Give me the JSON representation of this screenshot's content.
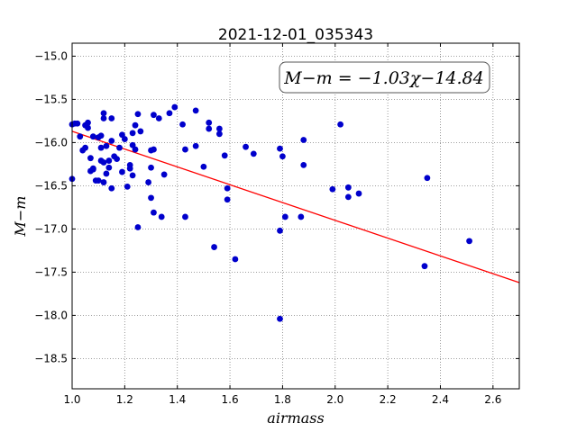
{
  "chart_data": {
    "type": "scatter",
    "title": "2021-12-01_035343",
    "xlabel": "airmass",
    "ylabel": "M−m",
    "xlim": [
      1.0,
      2.7
    ],
    "ylim": [
      -14.85,
      -18.85
    ],
    "y_inverted": true,
    "grid": true,
    "xticks": [
      1.0,
      1.2,
      1.4,
      1.6,
      1.8,
      2.0,
      2.2,
      2.4,
      2.6
    ],
    "xtick_labels": [
      "1.0",
      "1.2",
      "1.4",
      "1.6",
      "1.8",
      "2.0",
      "2.2",
      "2.4",
      "2.6"
    ],
    "yticks": [
      -15.0,
      -15.5,
      -16.0,
      -16.5,
      -17.0,
      -17.5,
      -18.0,
      -18.5
    ],
    "ytick_labels": [
      "−15.0",
      "−15.5",
      "−16.0",
      "−16.5",
      "−17.0",
      "−17.5",
      "−18.0",
      "−18.5"
    ],
    "annotation": "M−m = −1.03χ−14.84",
    "annotation_placement": "top-right",
    "colors": {
      "points": "#0000cc",
      "fit": "#ff0000",
      "grid": "#808080"
    },
    "fit": {
      "slope": -1.03,
      "intercept": -14.84
    },
    "points": [
      [
        1.0,
        -16.42
      ],
      [
        1.0,
        -15.79
      ],
      [
        1.01,
        -15.78
      ],
      [
        1.02,
        -15.78
      ],
      [
        1.03,
        -15.93
      ],
      [
        1.04,
        -16.09
      ],
      [
        1.05,
        -16.06
      ],
      [
        1.05,
        -15.8
      ],
      [
        1.06,
        -15.83
      ],
      [
        1.06,
        -15.77
      ],
      [
        1.07,
        -16.33
      ],
      [
        1.07,
        -16.18
      ],
      [
        1.08,
        -15.93
      ],
      [
        1.08,
        -16.31
      ],
      [
        1.08,
        -16.3
      ],
      [
        1.09,
        -16.44
      ],
      [
        1.1,
        -16.44
      ],
      [
        1.1,
        -15.94
      ],
      [
        1.11,
        -16.06
      ],
      [
        1.11,
        -15.92
      ],
      [
        1.11,
        -16.21
      ],
      [
        1.12,
        -15.66
      ],
      [
        1.12,
        -15.72
      ],
      [
        1.12,
        -16.23
      ],
      [
        1.12,
        -16.46
      ],
      [
        1.13,
        -16.36
      ],
      [
        1.13,
        -16.04
      ],
      [
        1.14,
        -16.21
      ],
      [
        1.14,
        -16.29
      ],
      [
        1.15,
        -15.72
      ],
      [
        1.15,
        -15.98
      ],
      [
        1.15,
        -16.53
      ],
      [
        1.16,
        -16.16
      ],
      [
        1.17,
        -16.19
      ],
      [
        1.18,
        -16.06
      ],
      [
        1.19,
        -16.34
      ],
      [
        1.19,
        -15.91
      ],
      [
        1.2,
        -15.96
      ],
      [
        1.21,
        -16.51
      ],
      [
        1.22,
        -16.26
      ],
      [
        1.22,
        -16.3
      ],
      [
        1.23,
        -15.89
      ],
      [
        1.23,
        -16.38
      ],
      [
        1.23,
        -16.03
      ],
      [
        1.24,
        -16.08
      ],
      [
        1.24,
        -15.8
      ],
      [
        1.25,
        -15.67
      ],
      [
        1.25,
        -16.98
      ],
      [
        1.26,
        -15.87
      ],
      [
        1.29,
        -16.46
      ],
      [
        1.3,
        -16.64
      ],
      [
        1.3,
        -16.29
      ],
      [
        1.3,
        -16.09
      ],
      [
        1.31,
        -16.08
      ],
      [
        1.31,
        -15.68
      ],
      [
        1.31,
        -16.81
      ],
      [
        1.33,
        -15.72
      ],
      [
        1.34,
        -16.86
      ],
      [
        1.35,
        -16.37
      ],
      [
        1.37,
        -15.66
      ],
      [
        1.39,
        -15.59
      ],
      [
        1.42,
        -15.79
      ],
      [
        1.43,
        -16.86
      ],
      [
        1.43,
        -16.08
      ],
      [
        1.47,
        -15.63
      ],
      [
        1.47,
        -16.04
      ],
      [
        1.5,
        -16.28
      ],
      [
        1.52,
        -15.84
      ],
      [
        1.52,
        -15.77
      ],
      [
        1.54,
        -17.21
      ],
      [
        1.56,
        -15.84
      ],
      [
        1.56,
        -15.9
      ],
      [
        1.58,
        -16.15
      ],
      [
        1.59,
        -16.53
      ],
      [
        1.59,
        -16.66
      ],
      [
        1.62,
        -17.35
      ],
      [
        1.66,
        -16.05
      ],
      [
        1.69,
        -16.13
      ],
      [
        1.79,
        -16.07
      ],
      [
        1.79,
        -17.02
      ],
      [
        1.8,
        -16.16
      ],
      [
        1.81,
        -16.86
      ],
      [
        1.79,
        -18.04
      ],
      [
        1.87,
        -16.86
      ],
      [
        1.88,
        -16.26
      ],
      [
        1.88,
        -15.97
      ],
      [
        1.99,
        -16.54
      ],
      [
        2.02,
        -15.79
      ],
      [
        2.05,
        -16.63
      ],
      [
        2.05,
        -16.52
      ],
      [
        2.09,
        -16.59
      ],
      [
        2.34,
        -17.43
      ],
      [
        2.35,
        -16.41
      ],
      [
        2.51,
        -17.14
      ]
    ]
  }
}
